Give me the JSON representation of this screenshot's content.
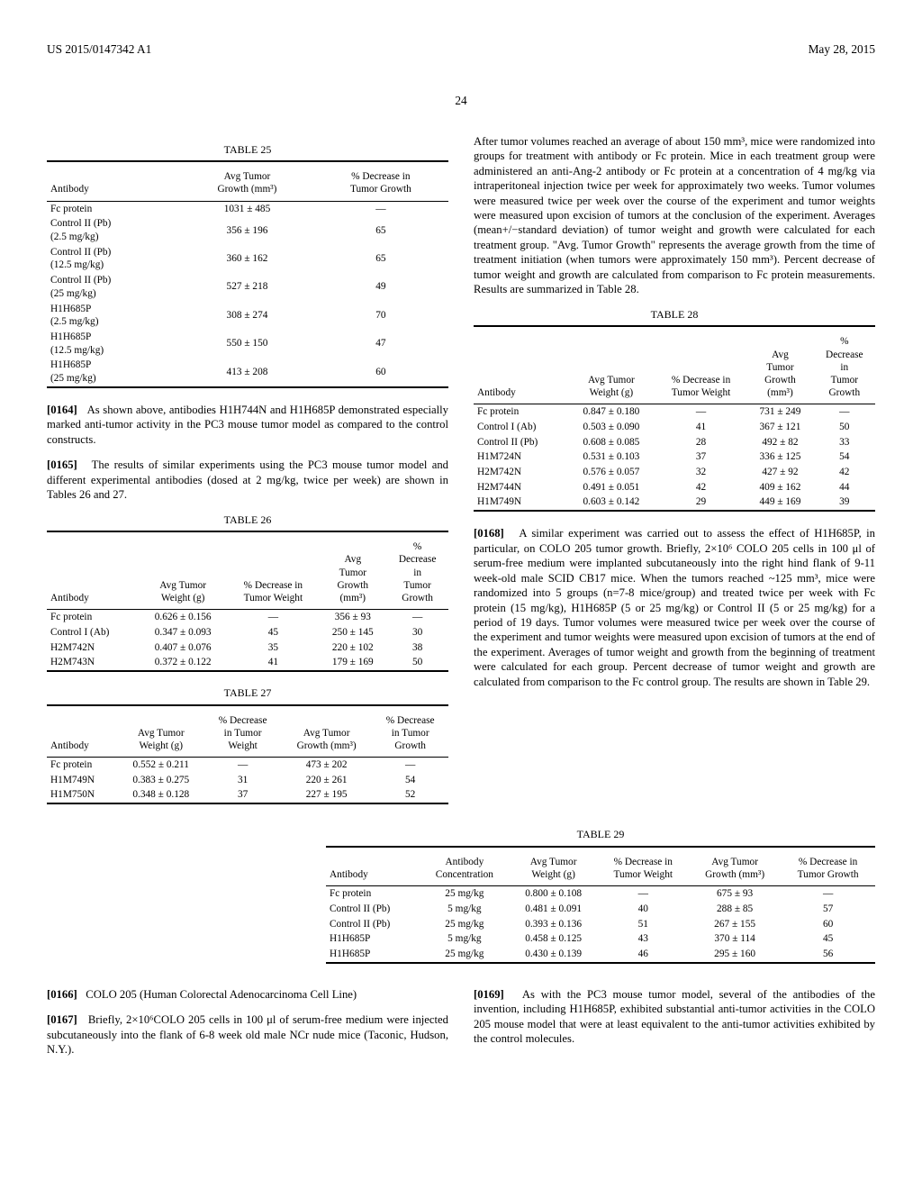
{
  "header": {
    "pub": "US 2015/0147342 A1",
    "date": "May 28, 2015",
    "page": "24"
  },
  "t25": {
    "caption": "TABLE 25",
    "cols": [
      "Antibody",
      "Avg Tumor\nGrowth (mm³)",
      "% Decrease in\nTumor Growth"
    ],
    "rows": [
      [
        "Fc protein",
        "1031 ± 485",
        "—"
      ],
      [
        "Control II (Pb)\n(2.5 mg/kg)",
        "356 ± 196",
        "65"
      ],
      [
        "Control II (Pb)\n(12.5 mg/kg)",
        "360 ± 162",
        "65"
      ],
      [
        "Control II (Pb)\n(25 mg/kg)",
        "527 ± 218",
        "49"
      ],
      [
        "H1H685P\n(2.5 mg/kg)",
        "308 ± 274",
        "70"
      ],
      [
        "H1H685P\n(12.5 mg/kg)",
        "550 ± 150",
        "47"
      ],
      [
        "H1H685P\n(25 mg/kg)",
        "413 ± 208",
        "60"
      ]
    ]
  },
  "para_0164": {
    "num": "[0164]",
    "text": "As shown above, antibodies H1H744N and H1H685P demonstrated especially marked anti-tumor activity in the PC3 mouse tumor model as compared to the control constructs."
  },
  "para_0165": {
    "num": "[0165]",
    "text": "The results of similar experiments using the PC3 mouse tumor model and different experimental antibodies (dosed at 2 mg/kg, twice per week) are shown in Tables 26 and 27."
  },
  "t26": {
    "caption": "TABLE 26",
    "cols": [
      "Antibody",
      "Avg Tumor\nWeight (g)",
      "% Decrease in\nTumor Weight",
      "Avg\nTumor\nGrowth\n(mm³)",
      "%\nDecrease\nin\nTumor\nGrowth"
    ],
    "rows": [
      [
        "Fc protein",
        "0.626 ± 0.156",
        "—",
        "356 ± 93",
        "—"
      ],
      [
        "Control I (Ab)",
        "0.347 ± 0.093",
        "45",
        "250 ± 145",
        "30"
      ],
      [
        "H2M742N",
        "0.407 ± 0.076",
        "35",
        "220 ± 102",
        "38"
      ],
      [
        "H2M743N",
        "0.372 ± 0.122",
        "41",
        "179 ± 169",
        "50"
      ]
    ]
  },
  "t27": {
    "caption": "TABLE 27",
    "cols": [
      "Antibody",
      "Avg Tumor\nWeight (g)",
      "% Decrease\nin Tumor\nWeight",
      "Avg Tumor\nGrowth (mm³)",
      "% Decrease\nin Tumor\nGrowth"
    ],
    "rows": [
      [
        "Fc protein",
        "0.552 ± 0.211",
        "—",
        "473 ± 202",
        "—"
      ],
      [
        "H1M749N",
        "0.383 ± 0.275",
        "31",
        "220 ± 261",
        "54"
      ],
      [
        "H1M750N",
        "0.348 ± 0.128",
        "37",
        "227 ± 195",
        "52"
      ]
    ]
  },
  "para_rh_top": "After tumor volumes reached an average of about 150 mm³, mice were randomized into groups for treatment with antibody or Fc protein. Mice in each treatment group were administered an anti-Ang-2 antibody or Fc protein at a concentration of 4 mg/kg via intraperitoneal injection twice per week for approximately two weeks. Tumor volumes were measured twice per week over the course of the experiment and tumor weights were measured upon excision of tumors at the conclusion of the experiment. Averages (mean+/−standard deviation) of tumor weight and growth were calculated for each treatment group. \"Avg. Tumor Growth\" represents the average growth from the time of treatment initiation (when tumors were approximately 150 mm³). Percent decrease of tumor weight and growth are calculated from comparison to Fc protein measurements. Results are summarized in Table 28.",
  "t28": {
    "caption": "TABLE 28",
    "cols": [
      "Antibody",
      "Avg Tumor\nWeight (g)",
      "% Decrease in\nTumor Weight",
      "Avg\nTumor\nGrowth\n(mm³)",
      "%\nDecrease\nin\nTumor\nGrowth"
    ],
    "rows": [
      [
        "Fc protein",
        "0.847 ± 0.180",
        "—",
        "731 ± 249",
        "—"
      ],
      [
        "Control I (Ab)",
        "0.503 ± 0.090",
        "41",
        "367 ± 121",
        "50"
      ],
      [
        "Control II (Pb)",
        "0.608 ± 0.085",
        "28",
        "492 ± 82",
        "33"
      ],
      [
        "H1M724N",
        "0.531 ± 0.103",
        "37",
        "336 ± 125",
        "54"
      ],
      [
        "H2M742N",
        "0.576 ± 0.057",
        "32",
        "427 ± 92",
        "42"
      ],
      [
        "H2M744N",
        "0.491 ± 0.051",
        "42",
        "409 ± 162",
        "44"
      ],
      [
        "H1M749N",
        "0.603 ± 0.142",
        "29",
        "449 ± 169",
        "39"
      ]
    ]
  },
  "para_0168": {
    "num": "[0168]",
    "text": "A similar experiment was carried out to assess the effect of H1H685P, in particular, on COLO 205 tumor growth. Briefly, 2×10⁶ COLO 205 cells in 100 μl of serum-free medium were implanted subcutaneously into the right hind flank of 9-11 week-old male SCID CB17 mice. When the tumors reached ~125 mm³, mice were randomized into 5 groups (n=7-8 mice/group) and treated twice per week with Fc protein (15 mg/kg), H1H685P (5 or 25 mg/kg) or Control II (5 or 25 mg/kg) for a period of 19 days. Tumor volumes were measured twice per week over the course of the experiment and tumor weights were measured upon excision of tumors at the end of the experiment. Averages of tumor weight and growth from the beginning of treatment were calculated for each group. Percent decrease of tumor weight and growth are calculated from comparison to the Fc control group. The results are shown in Table 29."
  },
  "t29": {
    "caption": "TABLE 29",
    "cols": [
      "Antibody",
      "Antibody\nConcentration",
      "Avg Tumor\nWeight (g)",
      "% Decrease in\nTumor Weight",
      "Avg Tumor\nGrowth (mm³)",
      "% Decrease in\nTumor Growth"
    ],
    "rows": [
      [
        "Fc protein",
        "25 mg/kg",
        "0.800 ± 0.108",
        "—",
        "675 ± 93",
        "—"
      ],
      [
        "Control II (Pb)",
        "5 mg/kg",
        "0.481 ± 0.091",
        "40",
        "288 ± 85",
        "57"
      ],
      [
        "Control II (Pb)",
        "25 mg/kg",
        "0.393 ± 0.136",
        "51",
        "267 ± 155",
        "60"
      ],
      [
        "H1H685P",
        "5 mg/kg",
        "0.458 ± 0.125",
        "43",
        "370 ± 114",
        "45"
      ],
      [
        "H1H685P",
        "25 mg/kg",
        "0.430 ± 0.139",
        "46",
        "295 ± 160",
        "56"
      ]
    ]
  },
  "para_0166": {
    "num": "[0166]",
    "text": "COLO 205 (Human Colorectal Adenocarcinoma Cell Line)"
  },
  "para_0167": {
    "num": "[0167]",
    "text": "Briefly, 2×10⁶COLO 205 cells in 100 μl of serum-free medium were injected subcutaneously into the flank of 6-8 week old male NCr nude mice (Taconic, Hudson, N.Y.)."
  },
  "para_0169": {
    "num": "[0169]",
    "text": "As with the PC3 mouse tumor model, several of the antibodies of the invention, including H1H685P, exhibited substantial anti-tumor activities in the COLO 205 mouse model that were at least equivalent to the anti-tumor activities exhibited by the control molecules."
  }
}
